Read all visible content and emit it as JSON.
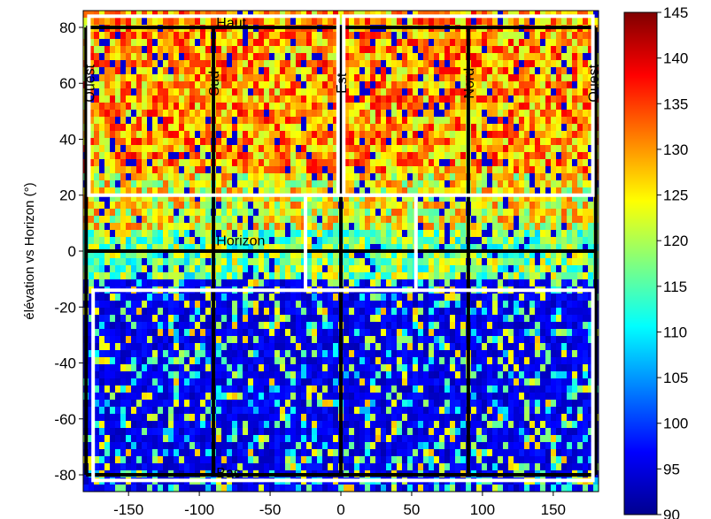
{
  "chart_data": {
    "type": "heatmap",
    "title": "",
    "xlabel": "",
    "ylabel": "élévation vs Horizon (°)",
    "xlim": [
      -182,
      182
    ],
    "ylim": [
      -86,
      86
    ],
    "x_ticks": [
      -150,
      -100,
      -50,
      0,
      50,
      100,
      150
    ],
    "y_ticks": [
      80,
      60,
      40,
      20,
      0,
      -20,
      -40,
      -60,
      -80
    ],
    "colorbar": {
      "min": 90,
      "max": 145,
      "ticks": [
        145,
        140,
        135,
        130,
        125,
        120,
        115,
        110,
        105,
        100,
        95,
        90
      ],
      "colormap": "jet"
    },
    "direction_labels": [
      {
        "text": "Haut",
        "x": -88,
        "y": 80
      },
      {
        "text": "Ouest",
        "x": -178,
        "y": 60,
        "vertical": true
      },
      {
        "text": "Sud",
        "x": -90,
        "y": 60,
        "vertical": true
      },
      {
        "text": "Est",
        "x": 0,
        "y": 60,
        "vertical": true
      },
      {
        "text": "Nord",
        "x": 90,
        "y": 60,
        "vertical": true
      },
      {
        "text": "Ouest",
        "x": 178,
        "y": 60,
        "vertical": true
      },
      {
        "text": "Horizon",
        "x": -88,
        "y": 2
      },
      {
        "text": "Bas",
        "x": -88,
        "y": -81
      }
    ],
    "black_lines": [
      {
        "from": [
          -180,
          80
        ],
        "to": [
          180,
          80
        ]
      },
      {
        "from": [
          -180,
          0
        ],
        "to": [
          180,
          0
        ]
      },
      {
        "from": [
          -180,
          -80
        ],
        "to": [
          180,
          -80
        ]
      },
      {
        "from": [
          -180,
          80
        ],
        "to": [
          -180,
          -80
        ]
      },
      {
        "from": [
          -90,
          80
        ],
        "to": [
          -90,
          -80
        ]
      },
      {
        "from": [
          0,
          80
        ],
        "to": [
          0,
          -80
        ]
      },
      {
        "from": [
          90,
          80
        ],
        "to": [
          90,
          -80
        ]
      },
      {
        "from": [
          180,
          80
        ],
        "to": [
          180,
          -80
        ]
      }
    ],
    "white_regions": [
      {
        "x": [
          -178,
          -2
        ],
        "y": [
          20,
          84
        ]
      },
      {
        "x": [
          2,
          178
        ],
        "y": [
          20,
          84
        ]
      },
      {
        "x": [
          -25,
          53
        ],
        "y": [
          -14,
          20
        ]
      },
      {
        "x": [
          -175,
          178
        ],
        "y": [
          -82,
          -14
        ]
      }
    ]
  }
}
